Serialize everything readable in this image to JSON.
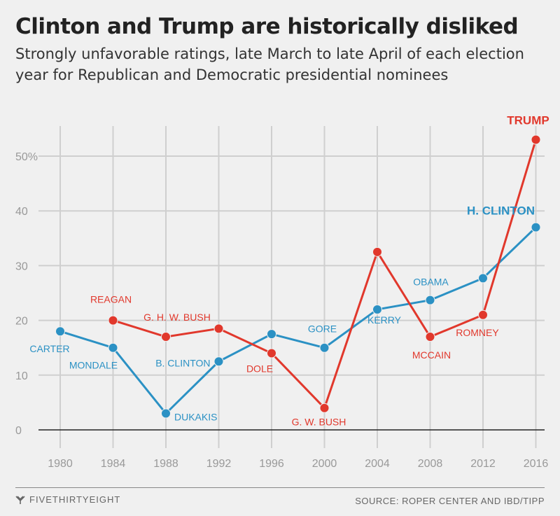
{
  "title": "Clinton and Trump are historically disliked",
  "subtitle": "Strongly unfavorable ratings, late March to late April of each election year for Republican and Democratic presidential nominees",
  "footer": {
    "logo_text": "FIVETHIRTYEIGHT",
    "source": "SOURCE: ROPER CENTER AND IBD/TIPP"
  },
  "colors": {
    "democratic": "#2b91c4",
    "republican": "#e1382c",
    "grid": "#cfcfcf",
    "zero": "#222222",
    "tick": "#999999"
  },
  "chart_data": {
    "type": "line",
    "x": [
      1980,
      1984,
      1988,
      1992,
      1996,
      2000,
      2004,
      2008,
      2012,
      2016
    ],
    "x_tick_labels": [
      "1980",
      "1984",
      "1988",
      "1992",
      "1996",
      "2000",
      "2004",
      "2008",
      "2012",
      "2016"
    ],
    "ylim": [
      0,
      55
    ],
    "y_ticks": [
      0,
      10,
      20,
      30,
      40,
      50
    ],
    "y_tick_labels": [
      "0",
      "10",
      "20",
      "30",
      "40",
      "50%"
    ],
    "grid": true,
    "series": [
      {
        "party": "democratic",
        "color": "#2b91c4",
        "x": [
          1980,
          1984,
          1988,
          1992,
          1996,
          2000,
          2004,
          2008,
          2012,
          2016
        ],
        "values": [
          18,
          15,
          3,
          12.5,
          17.5,
          15,
          22,
          23.7,
          27.7,
          37
        ],
        "point_labels": [
          "CARTER",
          "MONDALE",
          "DUKAKIS",
          "B. CLINTON",
          "",
          "GORE",
          "KERRY",
          "OBAMA",
          "",
          "H. CLINTON"
        ]
      },
      {
        "party": "republican",
        "color": "#e1382c",
        "x": [
          1984,
          1988,
          1992,
          1996,
          2000,
          2004,
          2008,
          2012,
          2016
        ],
        "values": [
          20,
          17,
          18.5,
          14,
          4,
          32.5,
          17,
          21,
          53
        ],
        "point_labels": [
          "REAGAN",
          "G. H. W. BUSH",
          "",
          "DOLE",
          "G. W. BUSH",
          "",
          "MCCAIN",
          "ROMNEY",
          "TRUMP"
        ]
      }
    ]
  }
}
